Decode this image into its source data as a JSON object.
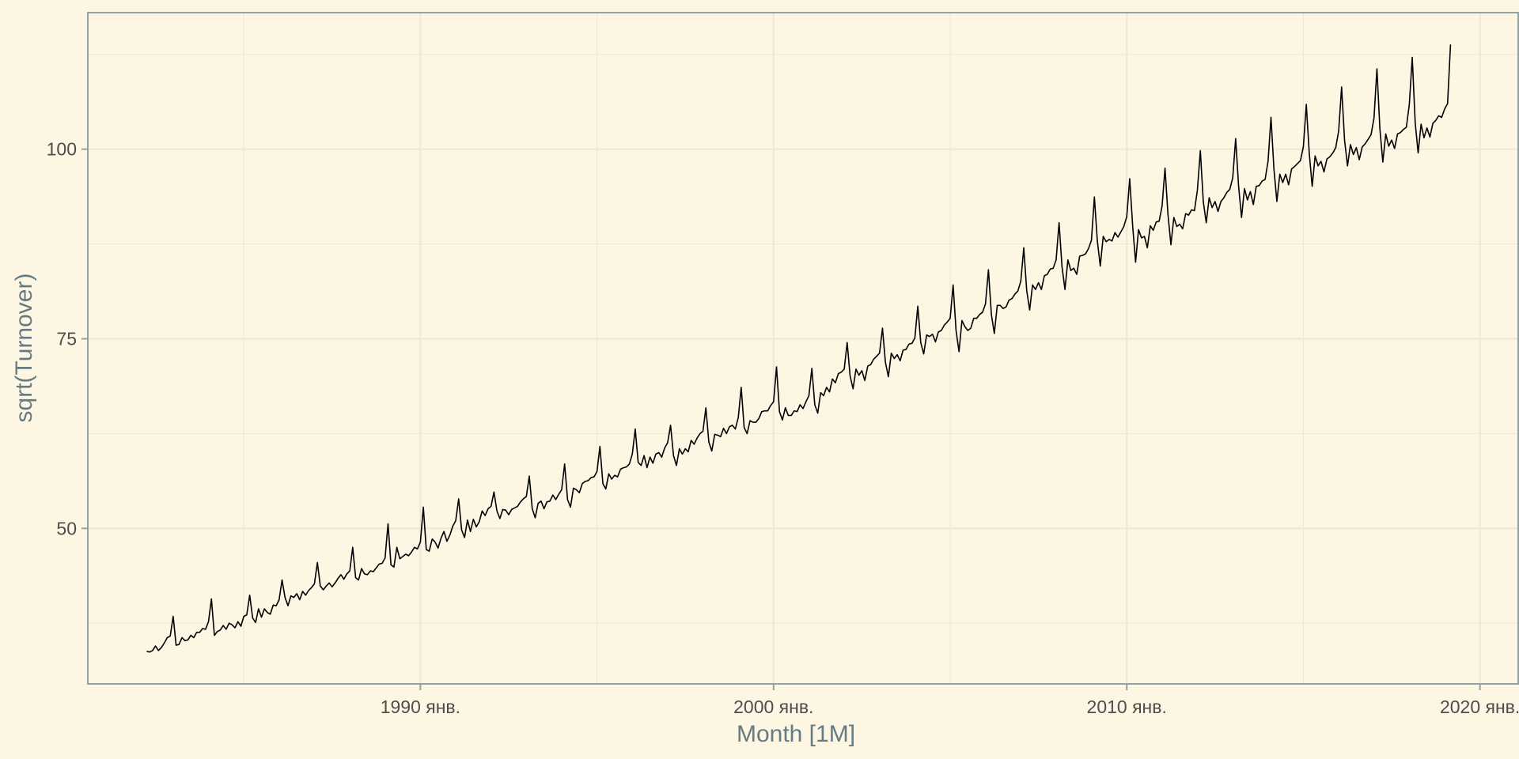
{
  "chart_data": {
    "type": "line",
    "title": "",
    "xlabel": "Month [1M]",
    "ylabel": "sqrt(Turnover)",
    "x_tick_labels": [
      "1990 янв.",
      "2000 янв.",
      "2010 янв.",
      "2020 янв."
    ],
    "x_tick_years": [
      1990,
      2000,
      2010,
      2020
    ],
    "y_ticks": [
      50,
      75,
      100
    ],
    "xlim": [
      "1980-08",
      "2021-02"
    ],
    "ylim": [
      29.5,
      118
    ],
    "grid": true,
    "legend": "none",
    "colors": {
      "background": "#fdf6e3",
      "grid": "#eee8d5",
      "line": "#000000",
      "frame": "#93a1a1"
    },
    "series": [
      {
        "start": "1982-04",
        "frequency": "monthly",
        "values": [
          33.8,
          33.7,
          33.9,
          34.5,
          33.9,
          34.3,
          34.9,
          35.6,
          35.8,
          38.4,
          34.6,
          34.7,
          35.6,
          35.2,
          35.3,
          35.9,
          35.6,
          36.3,
          36.3,
          36.8,
          36.7,
          37.7,
          40.7,
          35.9,
          36.4,
          36.6,
          37.2,
          36.7,
          37.5,
          37.3,
          36.9,
          37.7,
          37.1,
          38.4,
          38.6,
          41.2,
          38.2,
          37.6,
          39.4,
          38.3,
          39.4,
          38.9,
          38.7,
          39.9,
          39.8,
          40.6,
          43.2,
          40.9,
          39.8,
          41.1,
          40.9,
          41.4,
          40.6,
          41.7,
          41.2,
          41.8,
          42.2,
          42.7,
          45.5,
          42.4,
          41.9,
          42.4,
          42.8,
          42.3,
          42.8,
          43.4,
          43.9,
          43.3,
          44.0,
          44.4,
          47.5,
          43.5,
          43.2,
          44.7,
          44.0,
          43.9,
          44.4,
          44.3,
          44.8,
          45.3,
          45.4,
          46.1,
          50.6,
          45.2,
          44.9,
          47.5,
          46.0,
          46.3,
          46.6,
          46.4,
          46.9,
          47.5,
          47.3,
          48.2,
          52.8,
          47.2,
          47.0,
          48.6,
          48.2,
          47.4,
          48.7,
          49.6,
          48.3,
          49.1,
          50.3,
          51.0,
          53.9,
          49.8,
          48.8,
          51.1,
          49.6,
          51.2,
          50.2,
          50.9,
          52.3,
          51.7,
          52.6,
          52.9,
          54.8,
          52.3,
          51.3,
          52.5,
          52.4,
          51.8,
          52.5,
          52.7,
          52.9,
          53.5,
          53.9,
          54.2,
          56.9,
          52.6,
          51.4,
          53.3,
          53.6,
          52.6,
          53.5,
          53.6,
          54.4,
          53.8,
          54.5,
          55.1,
          58.5,
          53.8,
          52.8,
          55.3,
          55.1,
          54.7,
          55.9,
          56.2,
          56.3,
          56.7,
          56.8,
          57.5,
          60.8,
          55.9,
          55.2,
          57.2,
          56.5,
          57.0,
          56.8,
          57.8,
          58.0,
          58.1,
          58.5,
          59.8,
          63.1,
          58.7,
          58.3,
          59.6,
          58.0,
          59.4,
          58.6,
          59.8,
          60.0,
          59.4,
          60.6,
          61.3,
          63.6,
          59.6,
          58.3,
          60.5,
          59.8,
          60.5,
          60.1,
          61.6,
          61.1,
          61.9,
          62.5,
          62.8,
          65.9,
          61.4,
          60.2,
          62.4,
          62.3,
          62.1,
          63.2,
          62.5,
          63.4,
          63.6,
          63.1,
          64.6,
          68.6,
          63.3,
          62.5,
          64.2,
          64.0,
          64.0,
          64.5,
          65.4,
          65.5,
          65.5,
          66.2,
          66.7,
          71.3,
          65.4,
          64.3,
          65.9,
          64.9,
          64.9,
          65.5,
          65.4,
          66.3,
          65.8,
          66.7,
          67.5,
          71.1,
          66.3,
          65.2,
          67.9,
          67.5,
          68.6,
          68.0,
          69.7,
          69.2,
          70.4,
          70.6,
          71.0,
          74.5,
          70.1,
          68.4,
          71.0,
          70.2,
          70.8,
          69.5,
          71.4,
          71.6,
          72.3,
          72.7,
          73.1,
          76.4,
          71.9,
          70.0,
          73.1,
          72.4,
          72.9,
          72.1,
          73.5,
          73.6,
          74.3,
          74.4,
          75.1,
          79.3,
          74.5,
          73.0,
          75.5,
          75.3,
          75.6,
          74.6,
          75.9,
          76.1,
          76.8,
          77.2,
          77.7,
          82.1,
          76.1,
          73.3,
          77.4,
          76.6,
          76.1,
          76.4,
          77.7,
          77.7,
          78.2,
          78.5,
          79.6,
          84.1,
          78.2,
          75.7,
          79.4,
          79.4,
          79.0,
          79.2,
          80.1,
          80.3,
          80.9,
          81.3,
          82.6,
          87.0,
          81.4,
          78.8,
          82.1,
          81.5,
          82.4,
          81.5,
          83.3,
          83.5,
          84.2,
          84.3,
          85.4,
          90.3,
          84.5,
          81.5,
          85.4,
          84.0,
          84.3,
          83.5,
          85.9,
          86.0,
          86.2,
          86.9,
          88.0,
          93.7,
          87.9,
          84.6,
          88.5,
          87.8,
          88.1,
          87.9,
          89.0,
          88.4,
          89.1,
          89.8,
          91.1,
          96.1,
          89.9,
          85.1,
          89.4,
          88.3,
          88.5,
          87.0,
          89.9,
          89.3,
          90.4,
          90.5,
          92.5,
          97.5,
          91.4,
          87.4,
          91.0,
          89.8,
          90.1,
          89.5,
          91.5,
          91.3,
          92.0,
          91.9,
          94.6,
          99.8,
          93.1,
          90.3,
          93.6,
          92.3,
          93.1,
          91.8,
          93.1,
          93.6,
          94.3,
          94.7,
          96.2,
          101.4,
          95.1,
          91.0,
          94.8,
          93.3,
          94.4,
          92.7,
          95.1,
          95.2,
          95.8,
          96.0,
          98.4,
          104.2,
          97.4,
          93.1,
          96.7,
          95.6,
          96.7,
          95.3,
          97.4,
          97.7,
          98.1,
          98.5,
          100.3,
          105.9,
          99.5,
          95.1,
          99.1,
          97.8,
          98.4,
          97.0,
          98.7,
          99.0,
          99.5,
          100.2,
          102.4,
          108.2,
          101.2,
          97.8,
          100.6,
          99.3,
          100.2,
          98.6,
          100.3,
          100.7,
          101.3,
          101.9,
          104.1,
          110.6,
          102.7,
          98.3,
          102.0,
          100.4,
          101.2,
          100.1,
          102.0,
          102.2,
          102.6,
          102.9,
          105.9,
          112.1,
          103.5,
          99.5,
          103.3,
          101.5,
          102.8,
          101.6,
          103.4,
          103.8,
          104.4,
          104.2,
          105.3,
          106.0,
          113.8
        ]
      }
    ]
  }
}
